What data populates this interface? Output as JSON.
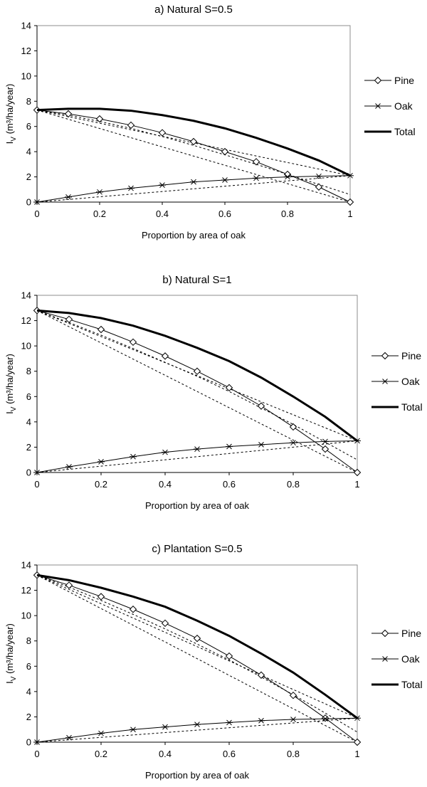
{
  "chart_data": [
    {
      "type": "line",
      "title": "a)  Natural  S=0.5",
      "xlabel": "Proportion by area of oak",
      "ylabel_main": "I",
      "ylabel_sub": "V",
      "ylabel_rest": " (m³/ha/year)",
      "xlim": [
        0,
        1
      ],
      "ylim": [
        0,
        14
      ],
      "x_ticks": [
        "0",
        "0.2",
        "0.4",
        "0.6",
        "0.8",
        "1"
      ],
      "y_ticks": [
        "0",
        "2",
        "4",
        "6",
        "8",
        "10",
        "12",
        "14"
      ],
      "grid": false,
      "legend_position": "right",
      "x": [
        0,
        0.1,
        0.2,
        0.3,
        0.4,
        0.5,
        0.6,
        0.7,
        0.8,
        0.9,
        1.0
      ],
      "series": [
        {
          "name": "Pine",
          "marker": "diamond",
          "values": [
            7.3,
            7.0,
            6.6,
            6.1,
            5.5,
            4.8,
            4.0,
            3.2,
            2.2,
            1.2,
            0.0
          ]
        },
        {
          "name": "Oak",
          "marker": "asterisk",
          "values": [
            0.0,
            0.4,
            0.8,
            1.1,
            1.35,
            1.6,
            1.75,
            1.9,
            2.0,
            2.05,
            2.1
          ]
        },
        {
          "name": "Total",
          "marker": "none",
          "values": [
            7.3,
            7.4,
            7.4,
            7.25,
            6.9,
            6.45,
            5.85,
            5.1,
            4.25,
            3.3,
            2.1
          ]
        }
      ],
      "dotted_reference_lines": [
        {
          "points": [
            [
              0,
              7.3
            ],
            [
              1,
              0.0
            ]
          ]
        },
        {
          "points": [
            [
              0,
              0.0
            ],
            [
              1,
              2.1
            ]
          ]
        },
        {
          "points": [
            [
              0,
              7.3
            ],
            [
              1,
              2.1
            ]
          ]
        },
        {
          "points": [
            [
              0,
              7.3
            ],
            [
              0.1,
              6.9
            ],
            [
              0.2,
              6.4
            ],
            [
              0.3,
              5.85
            ],
            [
              0.4,
              5.2
            ],
            [
              0.5,
              4.5
            ],
            [
              0.6,
              3.75
            ],
            [
              0.7,
              3.0
            ],
            [
              0.8,
              2.2
            ],
            [
              0.9,
              1.4
            ],
            [
              1,
              0.6
            ]
          ]
        }
      ]
    },
    {
      "type": "line",
      "title": "b)  Natural   S=1",
      "xlabel": "Proportion by area of oak",
      "ylabel_main": "I",
      "ylabel_sub": "V",
      "ylabel_rest": " (m³/ha/year)",
      "xlim": [
        0,
        1
      ],
      "ylim": [
        0,
        14
      ],
      "x_ticks": [
        "0",
        "0.2",
        "0.4",
        "0.6",
        "0.8",
        "1"
      ],
      "y_ticks": [
        "0",
        "2",
        "4",
        "6",
        "8",
        "10",
        "12",
        "14"
      ],
      "grid": false,
      "legend_position": "right",
      "x": [
        0,
        0.1,
        0.2,
        0.3,
        0.4,
        0.5,
        0.6,
        0.7,
        0.8,
        0.9,
        1.0
      ],
      "series": [
        {
          "name": "Pine",
          "marker": "diamond",
          "values": [
            12.8,
            12.1,
            11.3,
            10.3,
            9.2,
            8.0,
            6.7,
            5.25,
            3.6,
            1.85,
            0.0
          ]
        },
        {
          "name": "Oak",
          "marker": "asterisk",
          "values": [
            0.0,
            0.45,
            0.85,
            1.25,
            1.6,
            1.85,
            2.05,
            2.2,
            2.35,
            2.45,
            2.5
          ]
        },
        {
          "name": "Total",
          "marker": "none",
          "values": [
            12.8,
            12.6,
            12.2,
            11.6,
            10.8,
            9.85,
            8.8,
            7.5,
            6.0,
            4.4,
            2.5
          ]
        }
      ],
      "dotted_reference_lines": [
        {
          "points": [
            [
              0,
              12.8
            ],
            [
              1,
              0.0
            ]
          ]
        },
        {
          "points": [
            [
              0,
              0.0
            ],
            [
              1,
              2.5
            ]
          ]
        },
        {
          "points": [
            [
              0,
              12.8
            ],
            [
              1,
              2.5
            ]
          ]
        },
        {
          "points": [
            [
              0,
              12.8
            ],
            [
              0.1,
              11.85
            ],
            [
              0.2,
              10.85
            ],
            [
              0.3,
              9.8
            ],
            [
              0.4,
              8.7
            ],
            [
              0.5,
              7.6
            ],
            [
              0.6,
              6.4
            ],
            [
              0.7,
              5.1
            ],
            [
              0.8,
              3.8
            ],
            [
              0.9,
              2.4
            ],
            [
              1,
              1.0
            ]
          ]
        }
      ]
    },
    {
      "type": "line",
      "title": "c)  Plantation  S=0.5",
      "xlabel": "Proportion by area of oak",
      "ylabel_main": "I",
      "ylabel_sub": "V",
      "ylabel_rest": " (m³/ha/year)",
      "xlim": [
        0,
        1
      ],
      "ylim": [
        0,
        14
      ],
      "x_ticks": [
        "0",
        "0.2",
        "0.4",
        "0.6",
        "0.8",
        "1"
      ],
      "y_ticks": [
        "0",
        "2",
        "4",
        "6",
        "8",
        "10",
        "12",
        "14"
      ],
      "grid": false,
      "legend_position": "right",
      "x": [
        0,
        0.1,
        0.2,
        0.3,
        0.4,
        0.5,
        0.6,
        0.7,
        0.8,
        0.9,
        1.0
      ],
      "series": [
        {
          "name": "Pine",
          "marker": "diamond",
          "values": [
            13.2,
            12.4,
            11.5,
            10.5,
            9.4,
            8.2,
            6.8,
            5.3,
            3.7,
            1.9,
            0.0
          ]
        },
        {
          "name": "Oak",
          "marker": "asterisk",
          "values": [
            0.0,
            0.35,
            0.7,
            1.0,
            1.2,
            1.4,
            1.55,
            1.7,
            1.8,
            1.85,
            1.9
          ]
        },
        {
          "name": "Total",
          "marker": "none",
          "values": [
            13.2,
            12.8,
            12.2,
            11.5,
            10.7,
            9.6,
            8.4,
            7.0,
            5.5,
            3.75,
            1.9
          ]
        }
      ],
      "dotted_reference_lines": [
        {
          "points": [
            [
              0,
              13.2
            ],
            [
              1,
              0.0
            ]
          ]
        },
        {
          "points": [
            [
              0,
              0.0
            ],
            [
              1,
              1.9
            ]
          ]
        },
        {
          "points": [
            [
              0,
              13.2
            ],
            [
              1,
              1.9
            ]
          ]
        },
        {
          "points": [
            [
              0,
              13.2
            ],
            [
              0.1,
              12.25
            ],
            [
              0.2,
              11.2
            ],
            [
              0.3,
              10.1
            ],
            [
              0.4,
              8.95
            ],
            [
              0.5,
              7.75
            ],
            [
              0.6,
              6.5
            ],
            [
              0.7,
              5.15
            ],
            [
              0.8,
              3.75
            ],
            [
              0.9,
              2.3
            ],
            [
              1,
              0.8
            ]
          ]
        }
      ]
    }
  ]
}
